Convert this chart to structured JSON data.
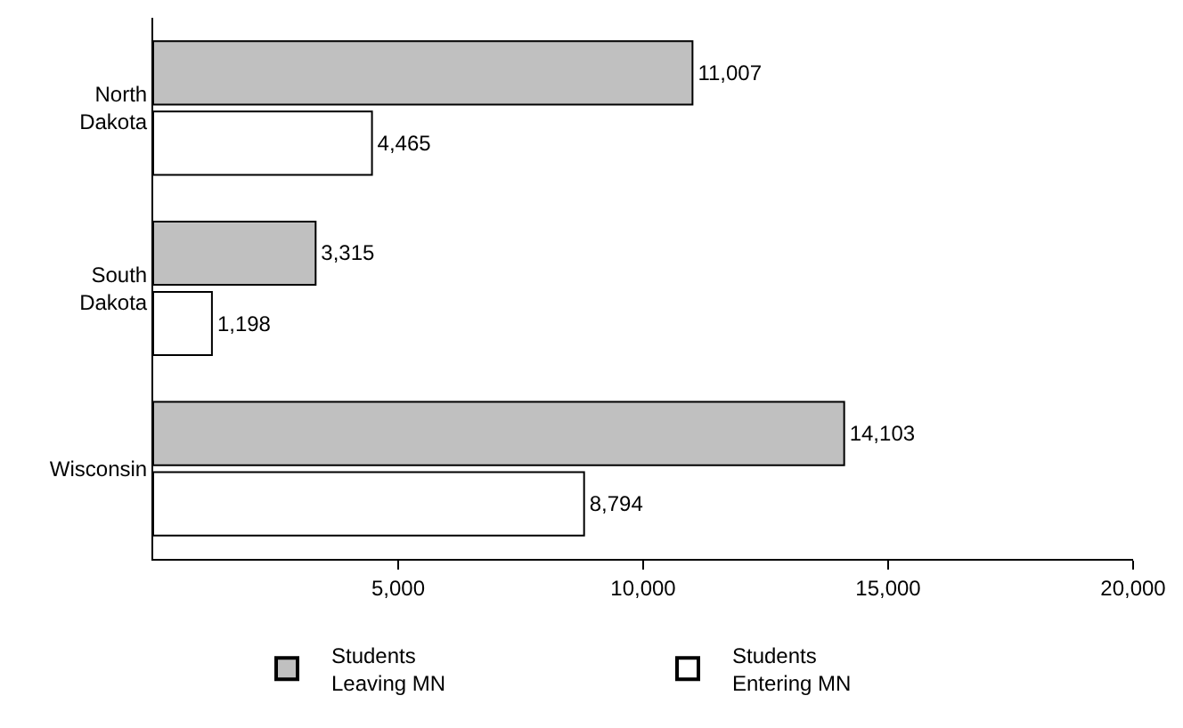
{
  "chart_data": {
    "type": "bar",
    "orientation": "horizontal",
    "categories": [
      "North Dakota",
      "South Dakota",
      "Wisconsin"
    ],
    "series": [
      {
        "name": "Students Leaving MN",
        "color": "#c0c0c0",
        "values": [
          11007,
          3315,
          14103
        ],
        "value_labels": [
          "11,007",
          "3,315",
          "14,103"
        ]
      },
      {
        "name": "Students Entering MN",
        "color": "#ffffff",
        "values": [
          4465,
          1198,
          8794
        ],
        "value_labels": [
          "4,465",
          "1,198",
          "8,794"
        ]
      }
    ],
    "xlim": [
      0,
      20000
    ],
    "xticks": [
      {
        "value": 5000,
        "label": "5,000"
      },
      {
        "value": 10000,
        "label": "10,000"
      },
      {
        "value": 15000,
        "label": "15,000"
      },
      {
        "value": 20000,
        "label": "20,000"
      }
    ],
    "grid": false,
    "legend": "bottom"
  }
}
